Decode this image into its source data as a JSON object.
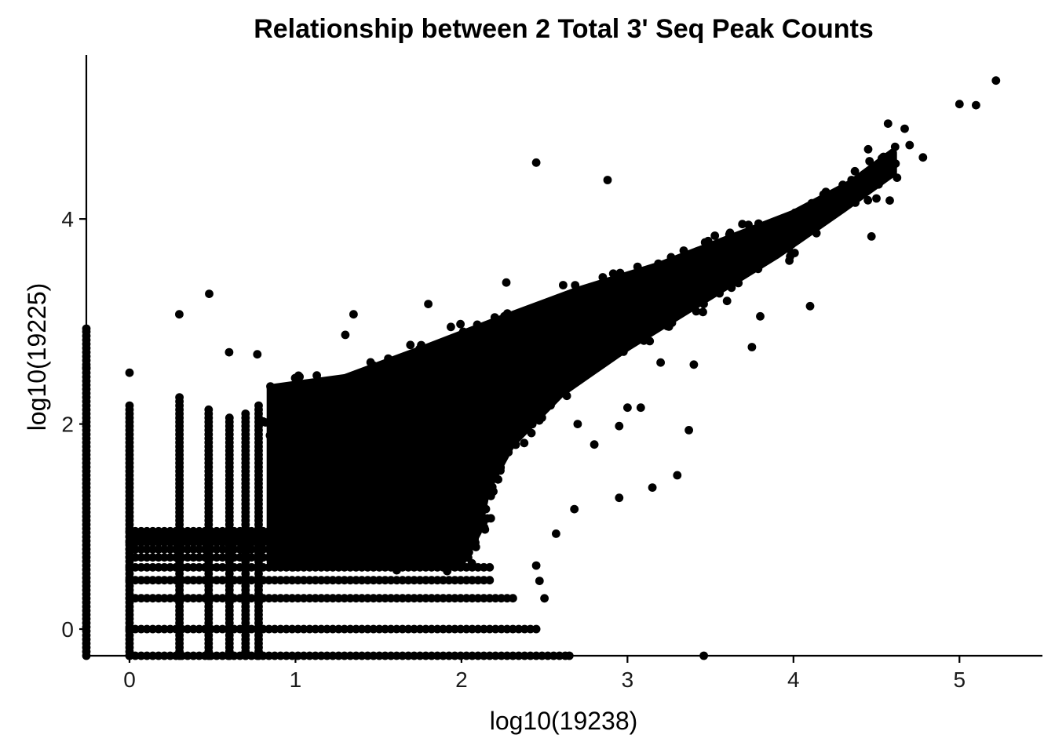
{
  "chart_data": {
    "type": "scatter",
    "title": "Relationship between 2 Total 3' Seq Peak Counts",
    "xlabel": "log10(19238)",
    "ylabel": "log10(19225)",
    "xlim": [
      -0.26,
      5.5
    ],
    "ylim": [
      -0.26,
      5.6
    ],
    "x_ticks": [
      0,
      1,
      2,
      3,
      4,
      5
    ],
    "y_ticks": [
      0,
      2,
      4
    ],
    "grid": false,
    "legend": "none",
    "point_color": "#000000",
    "discrete_levels": [
      -0.26,
      0,
      0.301,
      0.477,
      0.602,
      0.699,
      0.778,
      0.845,
      0.903,
      0.954
    ],
    "band_outline": [
      [
        0.85,
        0.65
      ],
      [
        0.85,
        2.35
      ],
      [
        1.3,
        2.45
      ],
      [
        1.8,
        2.75
      ],
      [
        2.2,
        3.0
      ],
      [
        2.7,
        3.3
      ],
      [
        3.2,
        3.55
      ],
      [
        3.6,
        3.8
      ],
      [
        4.0,
        4.05
      ],
      [
        4.35,
        4.35
      ],
      [
        4.6,
        4.65
      ],
      [
        4.6,
        4.45
      ],
      [
        4.3,
        4.1
      ],
      [
        3.9,
        3.65
      ],
      [
        3.4,
        3.15
      ],
      [
        3.0,
        2.75
      ],
      [
        2.6,
        2.3
      ],
      [
        2.3,
        1.8
      ],
      [
        2.15,
        1.35
      ],
      [
        2.1,
        0.95
      ],
      [
        2.0,
        0.65
      ]
    ],
    "outliers": [
      [
        5.22,
        5.35
      ],
      [
        5.0,
        5.12
      ],
      [
        5.1,
        5.11
      ],
      [
        4.57,
        4.93
      ],
      [
        4.67,
        4.88
      ],
      [
        4.7,
        4.72
      ],
      [
        4.45,
        4.68
      ],
      [
        2.45,
        4.55
      ],
      [
        2.88,
        4.38
      ],
      [
        4.47,
        3.83
      ],
      [
        4.1,
        3.15
      ],
      [
        0.48,
        3.27
      ],
      [
        0.3,
        3.07
      ],
      [
        1.35,
        3.07
      ],
      [
        1.3,
        2.87
      ],
      [
        0.6,
        2.7
      ],
      [
        0.77,
        2.68
      ],
      [
        1.8,
        3.17
      ],
      [
        2.27,
        3.38
      ],
      [
        3.25,
        2.95
      ],
      [
        3.4,
        2.58
      ],
      [
        3.0,
        2.16
      ],
      [
        3.08,
        2.16
      ],
      [
        3.37,
        1.94
      ],
      [
        2.95,
        1.98
      ],
      [
        3.3,
        1.5
      ],
      [
        3.15,
        1.38
      ],
      [
        2.95,
        1.28
      ],
      [
        2.68,
        1.17
      ],
      [
        2.57,
        0.93
      ],
      [
        2.45,
        0.62
      ],
      [
        2.47,
        0.47
      ],
      [
        2.5,
        0.3
      ],
      [
        3.46,
        -0.26
      ],
      [
        2.65,
        -0.26
      ],
      [
        -0.26,
        2.93
      ],
      [
        -0.26,
        2.55
      ],
      [
        0.0,
        2.5
      ],
      [
        2.6,
        2.3
      ],
      [
        2.7,
        2.0
      ],
      [
        2.8,
        1.8
      ],
      [
        3.2,
        2.6
      ],
      [
        3.6,
        3.2
      ],
      [
        3.8,
        3.05
      ],
      [
        4.5,
        4.2
      ],
      [
        4.58,
        4.18
      ],
      [
        4.35,
        4.38
      ],
      [
        4.78,
        4.6
      ],
      [
        3.75,
        2.75
      ]
    ],
    "level_extents": {
      "-0.26": [
        0.0,
        2.65
      ],
      "0": [
        0.0,
        2.45
      ],
      "0.301": [
        0.0,
        2.32
      ],
      "0.477": [
        0.0,
        2.2
      ],
      "0.602": [
        0.0,
        2.18
      ],
      "0.699": [
        0.0,
        2.05
      ],
      "0.778": [
        0.0,
        1.95
      ],
      "0.845": [
        0.0,
        1.9
      ],
      "0.903": [
        0.0,
        1.85
      ],
      "0.954": [
        0.0,
        1.8
      ]
    }
  }
}
